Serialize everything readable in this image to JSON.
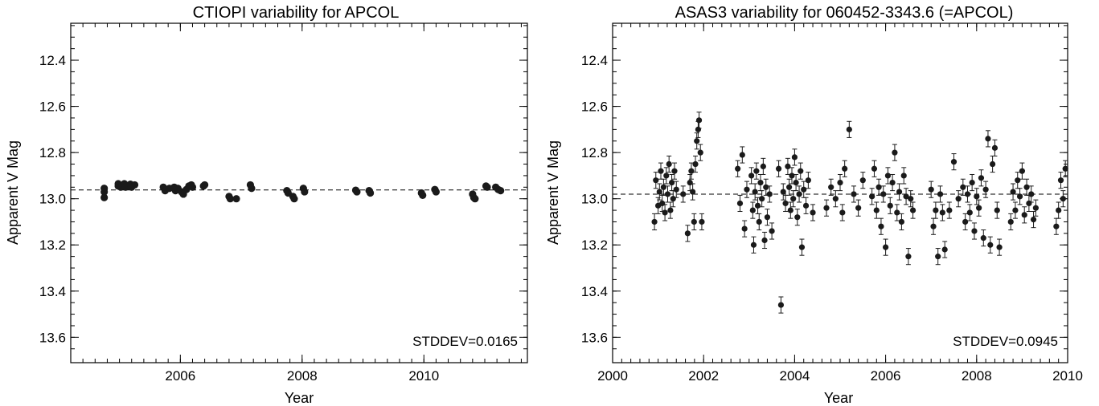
{
  "colors": {
    "marker": "#1a1a1a",
    "frame": "#000000",
    "background": "#ffffff"
  },
  "chart_data": [
    {
      "type": "scatter",
      "title": "CTIOPI variability for APCOL",
      "xlabel": "Year",
      "ylabel": "Apparent V Mag",
      "xlim": [
        2004.2,
        2011.7
      ],
      "ylim": [
        13.71,
        12.24
      ],
      "y_inverted": true,
      "xticks": [
        2006,
        2008,
        2010
      ],
      "yticks": [
        12.4,
        12.6,
        12.8,
        13.0,
        13.2,
        13.4,
        13.6
      ],
      "ytick_labels": [
        "12.4",
        "12.6",
        "12.8",
        "13.0",
        "13.2",
        "13.4",
        "13.6"
      ],
      "mean_line": 12.962,
      "annotation": "STDDEV=0.0165",
      "error_bars": false,
      "points": [
        [
          2004.75,
          12.955
        ],
        [
          2004.75,
          12.97
        ],
        [
          2004.75,
          12.995
        ],
        [
          2004.98,
          12.935
        ],
        [
          2004.98,
          12.945
        ],
        [
          2005.02,
          12.95
        ],
        [
          2005.08,
          12.935
        ],
        [
          2005.1,
          12.95
        ],
        [
          2005.14,
          12.945
        ],
        [
          2005.18,
          12.937
        ],
        [
          2005.2,
          12.95
        ],
        [
          2005.25,
          12.94
        ],
        [
          2005.72,
          12.95
        ],
        [
          2005.75,
          12.965
        ],
        [
          2005.82,
          12.955
        ],
        [
          2005.9,
          12.95
        ],
        [
          2005.92,
          12.965
        ],
        [
          2005.96,
          12.955
        ],
        [
          2006.02,
          12.97
        ],
        [
          2006.05,
          12.98
        ],
        [
          2006.1,
          12.96
        ],
        [
          2006.14,
          12.945
        ],
        [
          2006.18,
          12.94
        ],
        [
          2006.2,
          12.95
        ],
        [
          2006.38,
          12.945
        ],
        [
          2006.4,
          12.94
        ],
        [
          2006.8,
          12.99
        ],
        [
          2006.82,
          13.0
        ],
        [
          2006.92,
          13.0
        ],
        [
          2007.15,
          12.94
        ],
        [
          2007.17,
          12.955
        ],
        [
          2007.75,
          12.965
        ],
        [
          2007.77,
          12.975
        ],
        [
          2007.85,
          12.99
        ],
        [
          2007.87,
          13.0
        ],
        [
          2008.02,
          12.955
        ],
        [
          2008.04,
          12.97
        ],
        [
          2008.88,
          12.963
        ],
        [
          2008.9,
          12.97
        ],
        [
          2009.1,
          12.965
        ],
        [
          2009.12,
          12.975
        ],
        [
          2009.96,
          12.975
        ],
        [
          2009.98,
          12.985
        ],
        [
          2010.18,
          12.96
        ],
        [
          2010.2,
          12.97
        ],
        [
          2010.8,
          12.98
        ],
        [
          2010.82,
          12.995
        ],
        [
          2010.84,
          13.0
        ],
        [
          2011.02,
          12.945
        ],
        [
          2011.04,
          12.95
        ],
        [
          2011.18,
          12.95
        ],
        [
          2011.22,
          12.96
        ],
        [
          2011.26,
          12.965
        ]
      ]
    },
    {
      "type": "scatter",
      "title": "ASAS3 variability for 060452-3343.6 (=APCOL)",
      "xlabel": "Year",
      "ylabel": "Apparent V Mag",
      "xlim": [
        2000.0,
        2010.0
      ],
      "ylim": [
        13.71,
        12.24
      ],
      "y_inverted": true,
      "xticks": [
        2000,
        2002,
        2004,
        2006,
        2008,
        2010
      ],
      "yticks": [
        12.4,
        12.6,
        12.8,
        13.0,
        13.2,
        13.4,
        13.6
      ],
      "ytick_labels": [
        "12.4",
        "12.6",
        "12.8",
        "13.0",
        "13.2",
        "13.4",
        "13.6"
      ],
      "mean_line": 12.98,
      "annotation": "STDDEV=0.0945",
      "error_bars": true,
      "error_bar_half_width": 0.035,
      "points": [
        [
          2000.92,
          13.1
        ],
        [
          2000.95,
          12.92
        ],
        [
          2001.0,
          13.03
        ],
        [
          2001.03,
          12.97
        ],
        [
          2001.06,
          12.88
        ],
        [
          2001.09,
          13.02
        ],
        [
          2001.12,
          12.95
        ],
        [
          2001.15,
          13.06
        ],
        [
          2001.18,
          12.9
        ],
        [
          2001.21,
          12.98
        ],
        [
          2001.24,
          12.85
        ],
        [
          2001.27,
          13.05
        ],
        [
          2001.3,
          12.93
        ],
        [
          2001.33,
          13.0
        ],
        [
          2001.36,
          12.88
        ],
        [
          2001.4,
          12.96
        ],
        [
          2001.55,
          12.98
        ],
        [
          2001.65,
          13.15
        ],
        [
          2001.7,
          12.93
        ],
        [
          2001.73,
          12.88
        ],
        [
          2001.76,
          12.97
        ],
        [
          2001.79,
          13.1
        ],
        [
          2001.82,
          12.85
        ],
        [
          2001.85,
          12.75
        ],
        [
          2001.88,
          12.7
        ],
        [
          2001.9,
          12.66
        ],
        [
          2001.93,
          12.8
        ],
        [
          2001.96,
          13.1
        ],
        [
          2002.75,
          12.87
        ],
        [
          2002.8,
          13.02
        ],
        [
          2002.85,
          12.81
        ],
        [
          2002.9,
          13.13
        ],
        [
          2002.95,
          12.96
        ],
        [
          2003.05,
          12.9
        ],
        [
          2003.08,
          13.05
        ],
        [
          2003.1,
          13.2
        ],
        [
          2003.13,
          12.97
        ],
        [
          2003.16,
          12.88
        ],
        [
          2003.19,
          13.03
        ],
        [
          2003.22,
          13.1
        ],
        [
          2003.25,
          12.93
        ],
        [
          2003.28,
          13.0
        ],
        [
          2003.31,
          12.86
        ],
        [
          2003.34,
          13.18
        ],
        [
          2003.37,
          12.95
        ],
        [
          2003.4,
          13.08
        ],
        [
          2003.45,
          12.98
        ],
        [
          2003.5,
          13.14
        ],
        [
          2003.65,
          12.87
        ],
        [
          2003.7,
          13.46
        ],
        [
          2003.75,
          12.97
        ],
        [
          2003.8,
          13.02
        ],
        [
          2003.85,
          12.86
        ],
        [
          2003.88,
          12.95
        ],
        [
          2003.91,
          13.05
        ],
        [
          2003.94,
          12.9
        ],
        [
          2003.97,
          13.0
        ],
        [
          2004.0,
          12.82
        ],
        [
          2004.03,
          12.93
        ],
        [
          2004.06,
          13.08
        ],
        [
          2004.1,
          12.98
        ],
        [
          2004.13,
          12.88
        ],
        [
          2004.16,
          13.21
        ],
        [
          2004.2,
          12.96
        ],
        [
          2004.25,
          13.03
        ],
        [
          2004.3,
          12.92
        ],
        [
          2004.4,
          13.06
        ],
        [
          2004.7,
          13.04
        ],
        [
          2004.8,
          12.95
        ],
        [
          2004.9,
          13.0
        ],
        [
          2005.0,
          12.93
        ],
        [
          2005.05,
          13.06
        ],
        [
          2005.1,
          12.87
        ],
        [
          2005.2,
          12.7
        ],
        [
          2005.3,
          12.98
        ],
        [
          2005.4,
          13.04
        ],
        [
          2005.5,
          12.92
        ],
        [
          2005.7,
          12.99
        ],
        [
          2005.75,
          12.87
        ],
        [
          2005.8,
          13.05
        ],
        [
          2005.85,
          12.95
        ],
        [
          2005.9,
          13.12
        ],
        [
          2005.95,
          12.98
        ],
        [
          2006.0,
          13.21
        ],
        [
          2006.05,
          12.9
        ],
        [
          2006.1,
          13.03
        ],
        [
          2006.15,
          12.93
        ],
        [
          2006.2,
          12.8
        ],
        [
          2006.25,
          13.06
        ],
        [
          2006.3,
          12.97
        ],
        [
          2006.35,
          13.1
        ],
        [
          2006.4,
          12.9
        ],
        [
          2006.45,
          12.99
        ],
        [
          2006.5,
          13.25
        ],
        [
          2006.55,
          13.0
        ],
        [
          2006.6,
          13.05
        ],
        [
          2007.0,
          12.96
        ],
        [
          2007.05,
          13.12
        ],
        [
          2007.1,
          13.05
        ],
        [
          2007.15,
          13.25
        ],
        [
          2007.2,
          12.98
        ],
        [
          2007.25,
          13.06
        ],
        [
          2007.3,
          13.22
        ],
        [
          2007.4,
          13.05
        ],
        [
          2007.5,
          12.84
        ],
        [
          2007.6,
          13.0
        ],
        [
          2007.7,
          12.95
        ],
        [
          2007.75,
          13.1
        ],
        [
          2007.8,
          12.98
        ],
        [
          2007.85,
          13.06
        ],
        [
          2007.9,
          12.93
        ],
        [
          2007.95,
          13.14
        ],
        [
          2008.0,
          12.99
        ],
        [
          2008.05,
          13.04
        ],
        [
          2008.1,
          12.91
        ],
        [
          2008.15,
          13.17
        ],
        [
          2008.2,
          12.96
        ],
        [
          2008.25,
          12.74
        ],
        [
          2008.3,
          13.2
        ],
        [
          2008.35,
          12.85
        ],
        [
          2008.4,
          12.78
        ],
        [
          2008.45,
          13.05
        ],
        [
          2008.5,
          13.21
        ],
        [
          2008.75,
          13.1
        ],
        [
          2008.8,
          12.97
        ],
        [
          2008.85,
          13.05
        ],
        [
          2008.9,
          12.92
        ],
        [
          2008.95,
          12.99
        ],
        [
          2009.0,
          12.88
        ],
        [
          2009.05,
          13.07
        ],
        [
          2009.1,
          12.95
        ],
        [
          2009.15,
          13.02
        ],
        [
          2009.2,
          12.98
        ],
        [
          2009.25,
          13.09
        ],
        [
          2009.3,
          13.04
        ],
        [
          2009.75,
          13.12
        ],
        [
          2009.8,
          13.05
        ],
        [
          2009.85,
          12.92
        ],
        [
          2009.9,
          13.0
        ],
        [
          2009.95,
          12.87
        ]
      ]
    }
  ]
}
